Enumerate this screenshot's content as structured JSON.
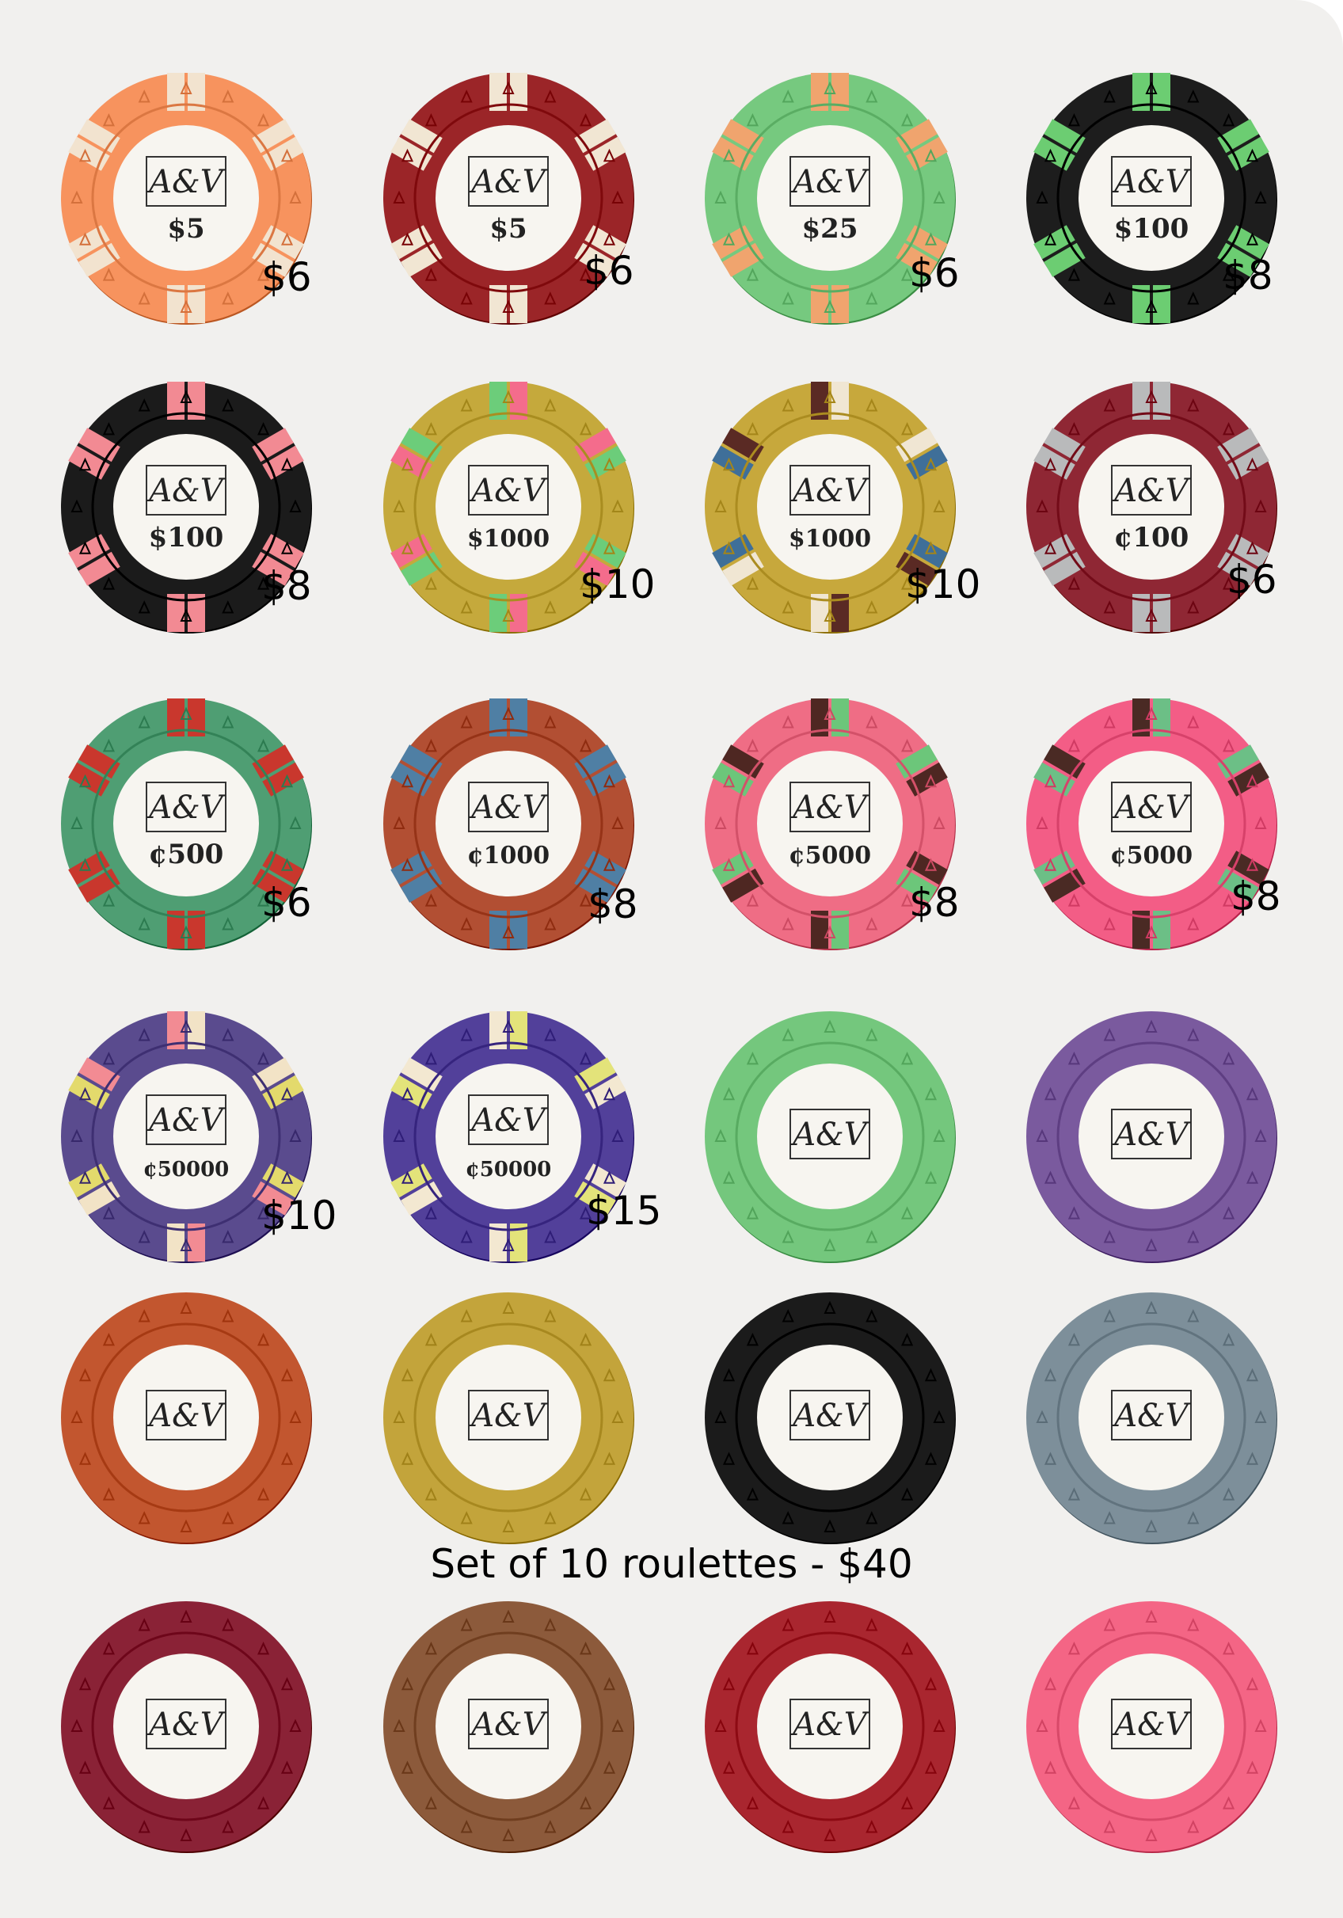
{
  "sheet": {
    "caption": "Set of 10 roulettes - $40"
  },
  "chips": [
    {
      "logo": "A&V",
      "denomination": "$5",
      "price": "$6",
      "color": "#f7935e",
      "inserts": [
        "#f2e3cf"
      ]
    },
    {
      "logo": "A&V",
      "denomination": "$5",
      "price": "$6",
      "color": "#9b2528",
      "inserts": [
        "#f1e6d3"
      ]
    },
    {
      "logo": "A&V",
      "denomination": "$25",
      "price": "$6",
      "color": "#76c97f",
      "inserts": [
        "#f0a46e"
      ]
    },
    {
      "logo": "A&V",
      "denomination": "$100",
      "price": "$8",
      "color": "#1d1d1d",
      "inserts": [
        "#6ccd72"
      ]
    },
    {
      "logo": "A&V",
      "denomination": "$100",
      "price": "$8",
      "color": "#1b1b1b",
      "inserts": [
        "#f28a93"
      ]
    },
    {
      "logo": "A&V",
      "denomination": "$1000",
      "price": "$10",
      "color": "#c5a93c",
      "inserts": [
        "#6ccd7a",
        "#f46c8c"
      ]
    },
    {
      "logo": "A&V",
      "denomination": "$1000",
      "price": "$10",
      "color": "#c7a83c",
      "inserts": [
        "#5a2a24",
        "#f0e6d3",
        "#3f6f99"
      ]
    },
    {
      "logo": "A&V",
      "denomination": "¢100",
      "price": "$6",
      "color": "#8f2734",
      "inserts": [
        "#b9babb"
      ]
    },
    {
      "logo": "A&V",
      "denomination": "¢500",
      "price": "$6",
      "color": "#4f9e73",
      "inserts": [
        "#c9372d"
      ]
    },
    {
      "logo": "A&V",
      "denomination": "¢1000",
      "price": "$8",
      "color": "#b24f33",
      "inserts": [
        "#4f7fa4"
      ]
    },
    {
      "logo": "A&V",
      "denomination": "¢5000",
      "price": "$8",
      "color": "#ef6d85",
      "inserts": [
        "#4e2722",
        "#6cc67a"
      ]
    },
    {
      "logo": "A&V",
      "denomination": "¢5000",
      "price": "$8",
      "color": "#f35d86",
      "inserts": [
        "#4a2a24",
        "#6cbf86"
      ]
    },
    {
      "logo": "A&V",
      "denomination": "¢50000",
      "price": "$10",
      "color": "#5a4b8e",
      "inserts": [
        "#f28b93",
        "#f2e3c6",
        "#e3da6c"
      ]
    },
    {
      "logo": "A&V",
      "denomination": "¢50000",
      "price": "$15",
      "color": "#52409a",
      "inserts": [
        "#f3e8d1",
        "#e3e37a"
      ]
    },
    {
      "logo": "A&V",
      "denomination": "",
      "price": "",
      "color": "#74c77d",
      "inserts": []
    },
    {
      "logo": "A&V",
      "denomination": "",
      "price": "",
      "color": "#7a5a9e",
      "inserts": []
    },
    {
      "logo": "A&V",
      "denomination": "",
      "price": "",
      "color": "#c2562f",
      "inserts": []
    },
    {
      "logo": "A&V",
      "denomination": "",
      "price": "",
      "color": "#c3a43b",
      "inserts": []
    },
    {
      "logo": "A&V",
      "denomination": "",
      "price": "",
      "color": "#1b1b1b",
      "inserts": []
    },
    {
      "logo": "A&V",
      "denomination": "",
      "price": "",
      "color": "#7d8f9a",
      "inserts": []
    },
    {
      "logo": "A&V",
      "denomination": "",
      "price": "",
      "color": "#8a2236",
      "inserts": []
    },
    {
      "logo": "A&V",
      "denomination": "",
      "price": "",
      "color": "#8c5a3b",
      "inserts": []
    },
    {
      "logo": "A&V",
      "denomination": "",
      "price": "",
      "color": "#a9262f",
      "inserts": []
    },
    {
      "logo": "A&V",
      "denomination": "",
      "price": "",
      "color": "#f46585",
      "inserts": []
    }
  ]
}
